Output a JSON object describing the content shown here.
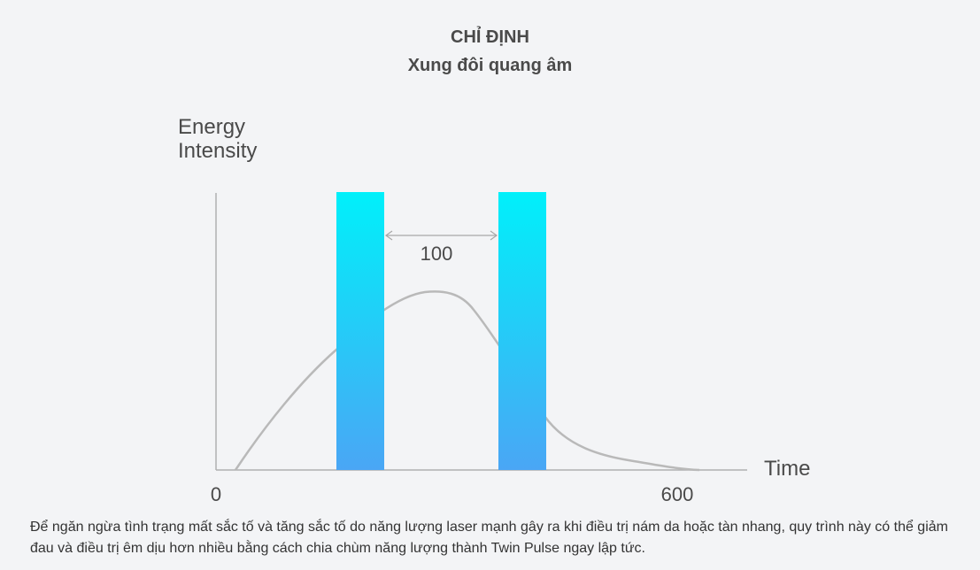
{
  "header": {
    "title": "CHỈ ĐỊNH",
    "subtitle": "Xung đôi quang âm"
  },
  "diagram": {
    "y_axis_label_line1": "Energy",
    "y_axis_label_line2": "Intensity",
    "x_axis_label": "Time",
    "x_tick_start": "0",
    "x_tick_end": "600",
    "gap_label": "100",
    "colors": {
      "pulse_top": "#00f0fa",
      "pulse_bottom": "#4aa6f5",
      "axis": "#b0b0b0",
      "curve": "#b9b9b9",
      "text": "#4a4a4a"
    }
  },
  "description": "Để ngăn ngừa tình trạng mất sắc tố và tăng sắc tố do năng lượng laser mạnh gây ra khi điều trị nám da hoặc tàn nhang, quy trình này có thể giảm đau và điều trị êm dịu hơn nhiều bằng cách chia chùm năng lượng thành Twin Pulse ngay lập tức."
}
